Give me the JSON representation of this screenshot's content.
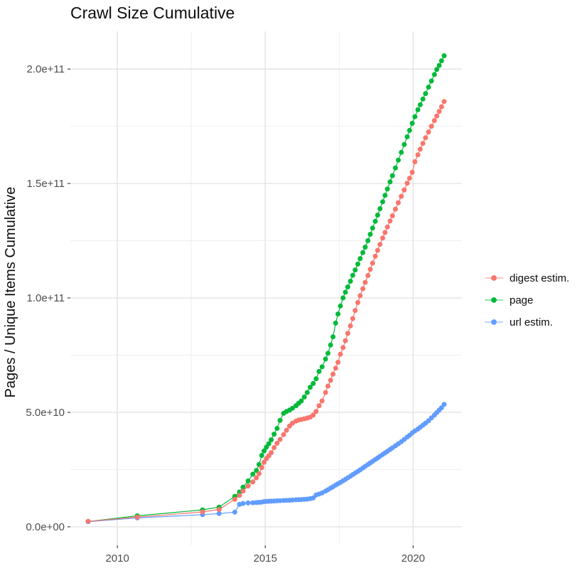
{
  "title": "Crawl Size Cumulative",
  "y_axis": {
    "label": "Pages / Unique Items Cumulative"
  },
  "x_axis": {
    "label": ""
  },
  "legend": {
    "position": "right",
    "items": [
      {
        "label": "digest estim.",
        "color": "#F8766D"
      },
      {
        "label": "page",
        "color": "#00BA38"
      },
      {
        "label": "url estim.",
        "color": "#619CFF"
      }
    ]
  },
  "colors": {
    "grid_major": "#e3e3e3",
    "grid_minor": "#efefef",
    "tick_mark": "#333333",
    "tick_text": "#4d4d4d",
    "background": "#ffffff"
  },
  "chart_data": {
    "type": "scatter",
    "title": "Crawl Size Cumulative",
    "xlabel": "",
    "ylabel": "Pages / Unique Items Cumulative",
    "grid": true,
    "legend_position": "right",
    "y_unit_multiplier": 1000000000.0,
    "y_values_in": "billions",
    "xlim": [
      2008.41,
      2021.65
    ],
    "ylim": [
      -8.1,
      216.5
    ],
    "x_major_ticks": [
      2010,
      2015,
      2020
    ],
    "x_tick_labels": [
      "2010",
      "2015",
      "2020"
    ],
    "x_minor_ticks": [
      2012.5,
      2017.5
    ],
    "y_major_ticks": [
      0,
      50,
      100,
      150,
      200
    ],
    "y_tick_labels": [
      "0.0e+00",
      "5.0e+10",
      "1.0e+11",
      "1.5e+11",
      "2.0e+11"
    ],
    "y_minor_ticks": [
      25,
      75,
      125,
      175
    ],
    "x": [
      2009.01,
      2010.67,
      2012.88,
      2013.44,
      2013.97,
      2014.13,
      2014.25,
      2014.42,
      2014.58,
      2014.7,
      2014.79,
      2014.88,
      2014.96,
      2015.04,
      2015.12,
      2015.2,
      2015.3,
      2015.4,
      2015.5,
      2015.62,
      2015.72,
      2015.82,
      2015.92,
      2016.04,
      2016.13,
      2016.22,
      2016.32,
      2016.42,
      2016.52,
      2016.62,
      2016.72,
      2016.82,
      2016.92,
      2017.04,
      2017.12,
      2017.21,
      2017.29,
      2017.38,
      2017.46,
      2017.54,
      2017.63,
      2017.71,
      2017.79,
      2017.88,
      2017.96,
      2018.04,
      2018.13,
      2018.21,
      2018.3,
      2018.38,
      2018.47,
      2018.55,
      2018.63,
      2018.72,
      2018.8,
      2018.88,
      2018.97,
      2019.05,
      2019.13,
      2019.22,
      2019.3,
      2019.4,
      2019.5,
      2019.6,
      2019.7,
      2019.8,
      2019.88,
      2019.97,
      2020.06,
      2020.16,
      2020.24,
      2020.33,
      2020.42,
      2020.52,
      2020.62,
      2020.72,
      2020.8,
      2020.88,
      2020.96,
      2021.05
    ],
    "series": [
      {
        "name": "digest estim.",
        "color": "#F8766D",
        "y": [
          2.4,
          4.2,
          6.5,
          7.6,
          12.0,
          13.7,
          15.6,
          17.8,
          19.6,
          21.4,
          23.2,
          25.9,
          28.2,
          29.8,
          31.0,
          32.4,
          34.6,
          36.5,
          38.2,
          40.3,
          42.2,
          44.0,
          45.3,
          46.2,
          46.7,
          46.9,
          47.2,
          47.5,
          47.9,
          48.8,
          50.4,
          52.9,
          55.0,
          58.7,
          61.5,
          64.0,
          66.7,
          69.3,
          71.9,
          75.4,
          78.3,
          81.3,
          84.5,
          87.8,
          91.0,
          94.5,
          98.0,
          101.0,
          104.0,
          106.8,
          109.8,
          112.5,
          115.2,
          118.2,
          120.8,
          123.4,
          126.2,
          128.6,
          131.0,
          133.6,
          135.9,
          138.8,
          141.6,
          144.4,
          147.2,
          150.1,
          152.3,
          154.9,
          159.5,
          162.5,
          165.0,
          167.5,
          170.0,
          172.5,
          175.0,
          177.5,
          179.5,
          181.5,
          183.5,
          185.8
        ]
      },
      {
        "name": "page",
        "color": "#00BA38",
        "y": [
          2.3,
          4.8,
          7.4,
          8.6,
          13.3,
          15.2,
          17.3,
          20.0,
          23.0,
          24.6,
          27.2,
          31.2,
          33.2,
          34.8,
          36.3,
          38.0,
          40.5,
          43.0,
          46.5,
          49.6,
          50.4,
          51.0,
          51.8,
          52.9,
          54.0,
          55.0,
          56.7,
          58.7,
          61.0,
          62.6,
          64.7,
          67.9,
          69.9,
          73.3,
          75.8,
          79.4,
          83.0,
          89.0,
          93.0,
          96.5,
          100.0,
          102.5,
          104.8,
          107.3,
          109.9,
          112.2,
          114.8,
          117.2,
          119.8,
          122.2,
          125.0,
          127.8,
          130.5,
          133.5,
          136.2,
          139.0,
          142.0,
          144.8,
          147.6,
          150.7,
          153.4,
          156.8,
          160.2,
          163.6,
          167.0,
          170.4,
          173.2,
          176.3,
          179.2,
          182.2,
          184.4,
          186.9,
          189.3,
          192.1,
          194.8,
          197.6,
          199.8,
          201.6,
          203.6,
          205.8
        ]
      },
      {
        "name": "url estim.",
        "color": "#619CFF",
        "y": [
          2.2,
          3.9,
          5.3,
          5.8,
          6.4,
          9.8,
          10.2,
          10.4,
          10.5,
          10.6,
          10.7,
          10.8,
          11.0,
          11.1,
          11.15,
          11.2,
          11.3,
          11.35,
          11.4,
          11.5,
          11.55,
          11.6,
          11.7,
          11.8,
          11.85,
          11.9,
          12.0,
          12.1,
          12.3,
          12.6,
          13.9,
          14.3,
          14.8,
          15.6,
          16.2,
          16.9,
          17.5,
          18.2,
          18.8,
          19.4,
          20.1,
          20.7,
          21.4,
          22.1,
          22.8,
          23.5,
          24.2,
          24.9,
          25.7,
          26.4,
          27.2,
          27.9,
          28.6,
          29.4,
          30.1,
          30.8,
          31.6,
          32.3,
          33.0,
          33.8,
          34.5,
          35.4,
          36.3,
          37.2,
          38.2,
          39.2,
          40.0,
          41.0,
          41.9,
          42.7,
          43.5,
          44.4,
          45.3,
          46.3,
          47.6,
          48.8,
          49.9,
          51.0,
          52.0,
          53.5
        ]
      }
    ]
  }
}
